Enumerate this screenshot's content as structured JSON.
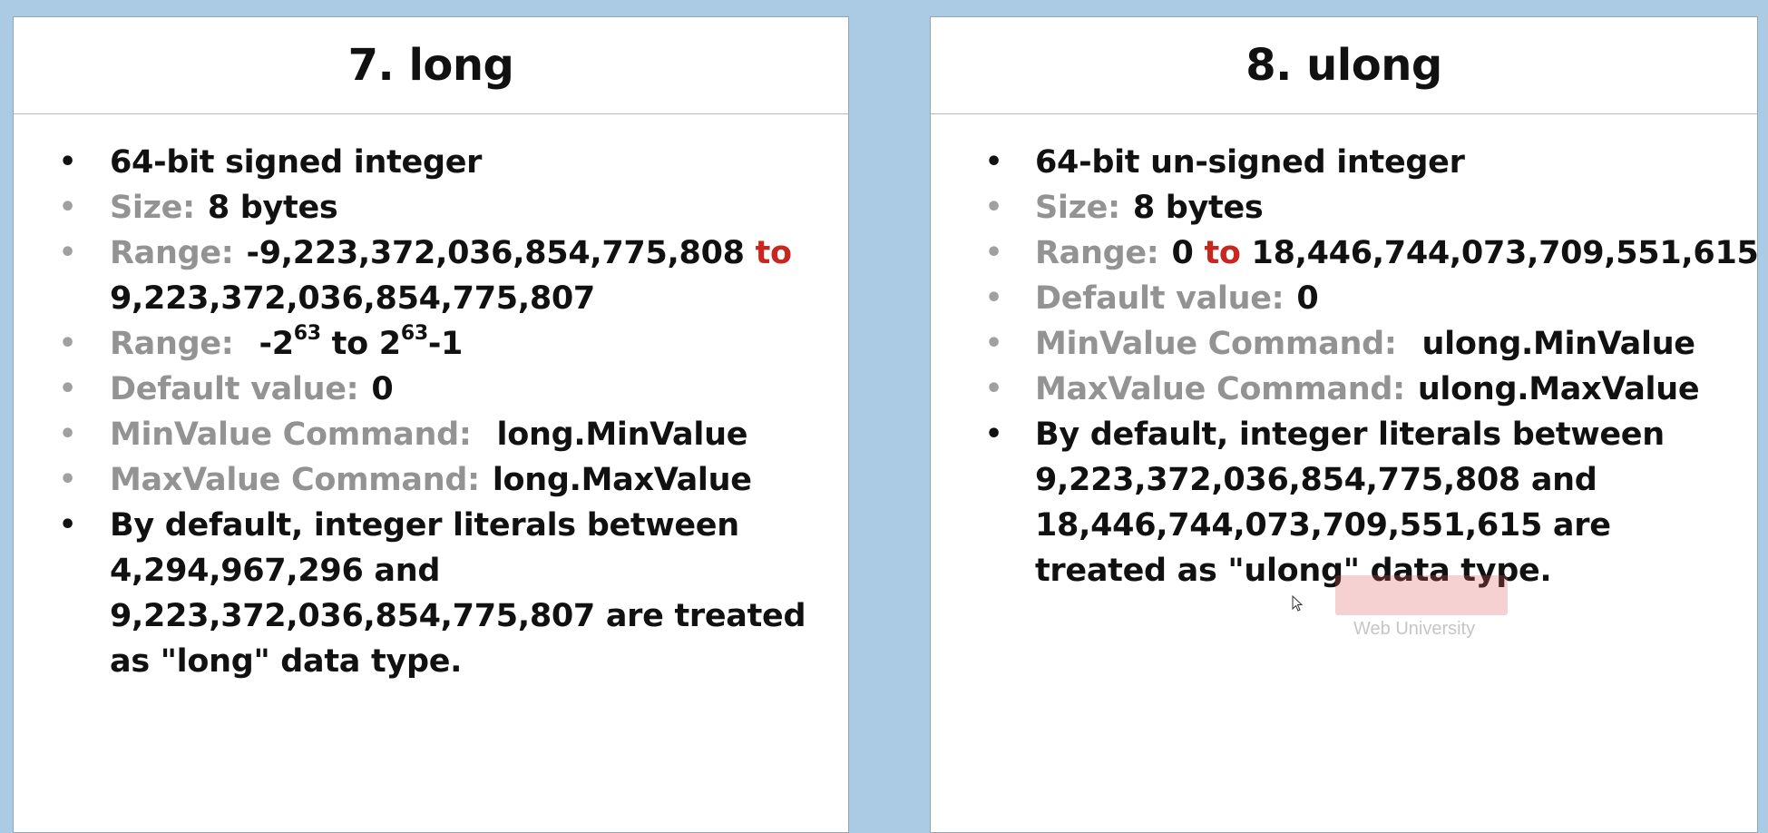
{
  "left_card": {
    "title": "7. long",
    "items": [
      {
        "text": "64-bit signed integer"
      },
      {
        "label": "Size:",
        "value": "8 bytes"
      },
      {
        "label": "Range:",
        "value_start": "-9,223,372,036,854,775,808",
        "connector": "to",
        "value_end": "9,223,372,036,854,775,807"
      },
      {
        "label": "Range:",
        "base1": "-2",
        "exp1": "63",
        "connector": "to",
        "base2": "2",
        "exp2": "63",
        "suffix": "-1"
      },
      {
        "label": "Default value:",
        "value": "0"
      },
      {
        "label": "MinValue Command:",
        "value": "long.MinValue"
      },
      {
        "label": "MaxValue Command:",
        "value": "long.MaxValue"
      },
      {
        "text": "By default, integer literals between 4,294,967,296 and 9,223,372,036,854,775,807 are treated as \"long\" data type."
      }
    ]
  },
  "right_card": {
    "title": "8. ulong",
    "items": [
      {
        "text": "64-bit un-signed integer"
      },
      {
        "label": "Size:",
        "value": "8 bytes"
      },
      {
        "label": "Range:",
        "value_start": "0",
        "connector": "to",
        "value_end": "18,446,744,073,709,551,615"
      },
      {
        "label": "Default value:",
        "value": "0"
      },
      {
        "label": "MinValue Command:",
        "value": "ulong.MinValue"
      },
      {
        "label": "MaxValue Command:",
        "value": "ulong.MaxValue"
      },
      {
        "text": "By default, integer literals between 9,223,372,036,854,775,808 and 18,446,744,073,709,551,615 are treated as \"ulong\" data type."
      }
    ]
  },
  "watermark": {
    "text": "Web University"
  },
  "colors": {
    "background": "#aacbe3",
    "label_grey": "#939393",
    "accent_red": "#c8261e",
    "text": "#111111"
  }
}
